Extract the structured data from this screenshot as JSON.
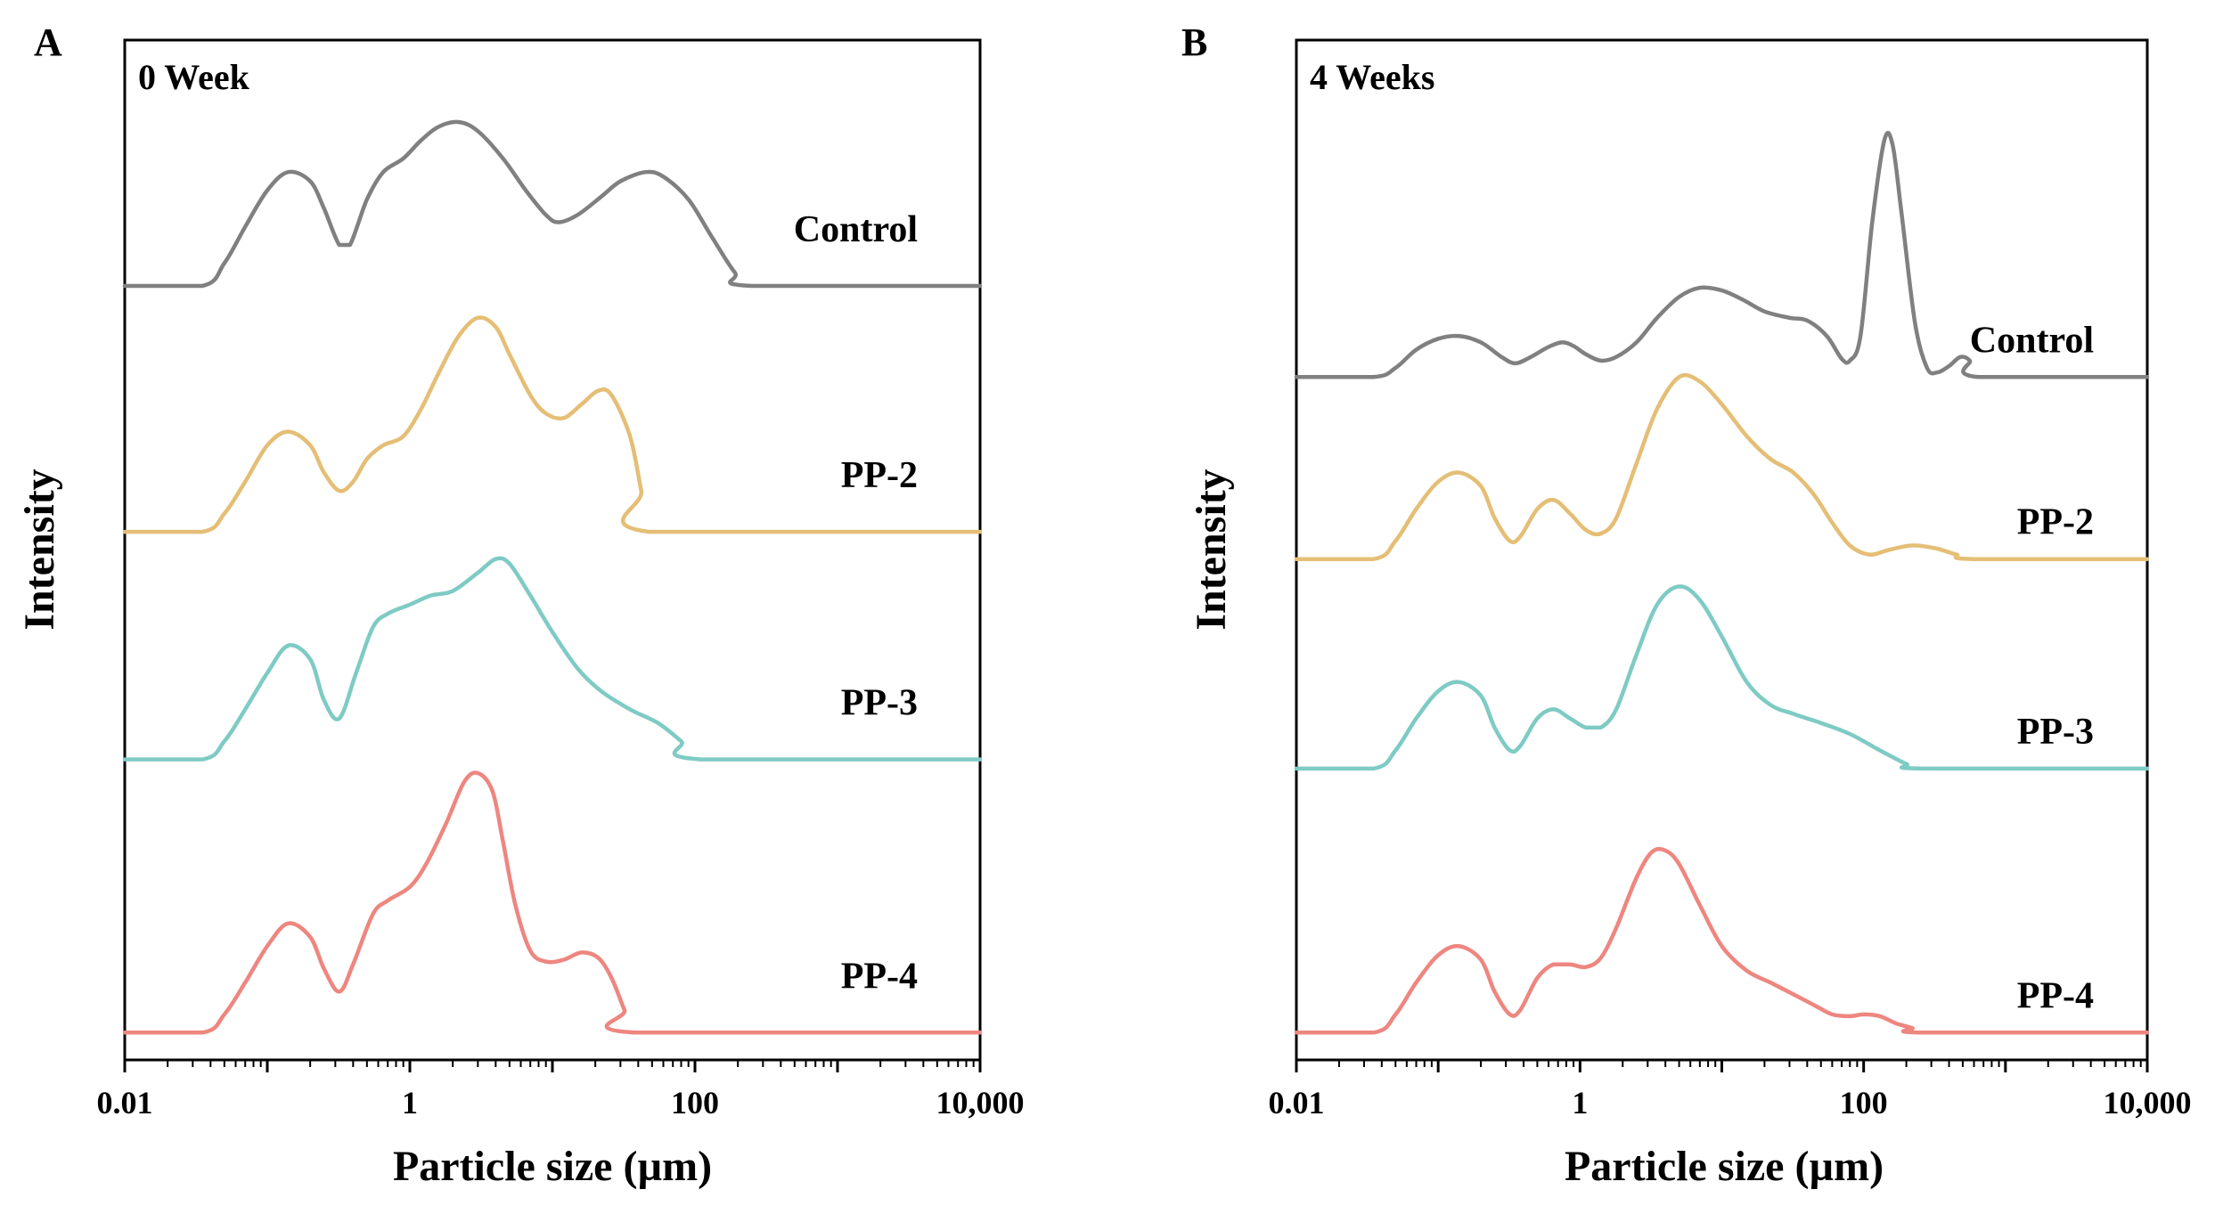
{
  "colors": {
    "control": "#808080",
    "pp2": "#E5BE76",
    "pp3": "#7ECBC4",
    "pp4": "#EE8680"
  },
  "chart_data": [
    {
      "panel": "A",
      "title": "0 Week",
      "type": "line",
      "xlabel": "Particle size (µm)",
      "ylabel": "Intensity",
      "xscale": "log",
      "xlim": [
        0.01,
        10000
      ],
      "xticks": [
        0.01,
        1,
        100,
        10000
      ],
      "xtick_labels": [
        "0.01",
        "1",
        "100",
        "10,000"
      ],
      "ylim": [
        0,
        11.2
      ],
      "series": [
        {
          "name": "Control",
          "color": "#808080",
          "offset": 8.5,
          "points": [
            [
              0.01,
              0
            ],
            [
              0.035,
              0
            ],
            [
              0.05,
              0.25
            ],
            [
              0.07,
              0.65
            ],
            [
              0.1,
              1.05
            ],
            [
              0.14,
              1.25
            ],
            [
              0.2,
              1.15
            ],
            [
              0.25,
              0.85
            ],
            [
              0.32,
              0.45
            ],
            [
              0.38,
              0.45
            ],
            [
              0.5,
              0.95
            ],
            [
              0.65,
              1.25
            ],
            [
              0.9,
              1.4
            ],
            [
              1.2,
              1.6
            ],
            [
              1.6,
              1.75
            ],
            [
              2.2,
              1.8
            ],
            [
              3,
              1.7
            ],
            [
              4.5,
              1.4
            ],
            [
              6.5,
              1.05
            ],
            [
              9,
              0.78
            ],
            [
              11,
              0.7
            ],
            [
              15,
              0.78
            ],
            [
              22,
              0.98
            ],
            [
              30,
              1.15
            ],
            [
              45,
              1.25
            ],
            [
              60,
              1.2
            ],
            [
              90,
              0.95
            ],
            [
              130,
              0.55
            ],
            [
              190,
              0.15
            ],
            [
              250,
              0
            ],
            [
              10000,
              0
            ]
          ]
        },
        {
          "name": "PP-2",
          "color": "#E5BE76",
          "offset": 5.8,
          "points": [
            [
              0.01,
              0
            ],
            [
              0.035,
              0
            ],
            [
              0.05,
              0.2
            ],
            [
              0.07,
              0.55
            ],
            [
              0.1,
              0.95
            ],
            [
              0.14,
              1.1
            ],
            [
              0.2,
              0.95
            ],
            [
              0.25,
              0.65
            ],
            [
              0.32,
              0.45
            ],
            [
              0.4,
              0.55
            ],
            [
              0.5,
              0.8
            ],
            [
              0.65,
              0.95
            ],
            [
              0.9,
              1.05
            ],
            [
              1.2,
              1.35
            ],
            [
              1.6,
              1.75
            ],
            [
              2.2,
              2.15
            ],
            [
              3,
              2.35
            ],
            [
              4,
              2.25
            ],
            [
              5,
              1.95
            ],
            [
              7,
              1.5
            ],
            [
              9,
              1.3
            ],
            [
              12,
              1.25
            ],
            [
              16,
              1.4
            ],
            [
              21,
              1.55
            ],
            [
              26,
              1.5
            ],
            [
              35,
              1.05
            ],
            [
              42,
              0.45
            ],
            [
              48,
              0
            ],
            [
              10000,
              0
            ]
          ]
        },
        {
          "name": "PP-3",
          "color": "#7ECBC4",
          "offset": 3.3,
          "points": [
            [
              0.01,
              0
            ],
            [
              0.035,
              0
            ],
            [
              0.05,
              0.2
            ],
            [
              0.07,
              0.55
            ],
            [
              0.1,
              0.95
            ],
            [
              0.14,
              1.25
            ],
            [
              0.2,
              1.1
            ],
            [
              0.25,
              0.65
            ],
            [
              0.32,
              0.45
            ],
            [
              0.42,
              0.95
            ],
            [
              0.55,
              1.45
            ],
            [
              0.7,
              1.6
            ],
            [
              1,
              1.7
            ],
            [
              1.4,
              1.8
            ],
            [
              2,
              1.85
            ],
            [
              3,
              2.05
            ],
            [
              4,
              2.2
            ],
            [
              5,
              2.15
            ],
            [
              7,
              1.8
            ],
            [
              10,
              1.4
            ],
            [
              15,
              1.0
            ],
            [
              22,
              0.75
            ],
            [
              35,
              0.55
            ],
            [
              55,
              0.4
            ],
            [
              80,
              0.2
            ],
            [
              110,
              0
            ],
            [
              10000,
              0
            ]
          ]
        },
        {
          "name": "PP-4",
          "color": "#EE8680",
          "offset": 0.3,
          "points": [
            [
              0.01,
              0
            ],
            [
              0.035,
              0
            ],
            [
              0.05,
              0.2
            ],
            [
              0.07,
              0.55
            ],
            [
              0.1,
              0.95
            ],
            [
              0.14,
              1.2
            ],
            [
              0.2,
              1.05
            ],
            [
              0.25,
              0.7
            ],
            [
              0.32,
              0.45
            ],
            [
              0.4,
              0.75
            ],
            [
              0.55,
              1.3
            ],
            [
              0.7,
              1.45
            ],
            [
              1,
              1.6
            ],
            [
              1.3,
              1.85
            ],
            [
              1.8,
              2.3
            ],
            [
              2.4,
              2.75
            ],
            [
              3,
              2.85
            ],
            [
              3.8,
              2.65
            ],
            [
              4.5,
              2.1
            ],
            [
              5.5,
              1.4
            ],
            [
              7,
              0.9
            ],
            [
              9,
              0.78
            ],
            [
              12,
              0.8
            ],
            [
              16,
              0.88
            ],
            [
              21,
              0.82
            ],
            [
              26,
              0.6
            ],
            [
              32,
              0.25
            ],
            [
              38,
              0
            ],
            [
              10000,
              0
            ]
          ]
        }
      ]
    },
    {
      "panel": "B",
      "title": "4 Weeks",
      "type": "line",
      "xlabel": "Particle size (µm)",
      "ylabel": "Intensity",
      "xscale": "log",
      "xlim": [
        0.01,
        10000
      ],
      "xticks": [
        0.01,
        1,
        100,
        10000
      ],
      "xtick_labels": [
        "0.01",
        "1",
        "100",
        "10,000"
      ],
      "ylim": [
        0,
        11.2
      ],
      "series": [
        {
          "name": "Control",
          "color": "#808080",
          "offset": 7.5,
          "points": [
            [
              0.01,
              0
            ],
            [
              0.035,
              0
            ],
            [
              0.05,
              0.1
            ],
            [
              0.07,
              0.3
            ],
            [
              0.1,
              0.42
            ],
            [
              0.14,
              0.45
            ],
            [
              0.2,
              0.38
            ],
            [
              0.28,
              0.22
            ],
            [
              0.35,
              0.15
            ],
            [
              0.45,
              0.22
            ],
            [
              0.6,
              0.33
            ],
            [
              0.75,
              0.38
            ],
            [
              0.9,
              0.34
            ],
            [
              1.1,
              0.25
            ],
            [
              1.4,
              0.18
            ],
            [
              1.8,
              0.22
            ],
            [
              2.5,
              0.38
            ],
            [
              3.5,
              0.65
            ],
            [
              5,
              0.88
            ],
            [
              7,
              0.98
            ],
            [
              10,
              0.95
            ],
            [
              14,
              0.85
            ],
            [
              20,
              0.72
            ],
            [
              30,
              0.65
            ],
            [
              40,
              0.62
            ],
            [
              55,
              0.45
            ],
            [
              70,
              0.2
            ],
            [
              80,
              0.18
            ],
            [
              95,
              0.45
            ],
            [
              115,
              1.7
            ],
            [
              140,
              2.6
            ],
            [
              160,
              2.55
            ],
            [
              185,
              1.8
            ],
            [
              230,
              0.6
            ],
            [
              280,
              0.1
            ],
            [
              330,
              0.05
            ],
            [
              400,
              0.12
            ],
            [
              480,
              0.22
            ],
            [
              560,
              0.18
            ],
            [
              640,
              0
            ],
            [
              10000,
              0
            ]
          ]
        },
        {
          "name": "PP-2",
          "color": "#E5BE76",
          "offset": 5.5,
          "points": [
            [
              0.01,
              0
            ],
            [
              0.035,
              0
            ],
            [
              0.05,
              0.2
            ],
            [
              0.07,
              0.55
            ],
            [
              0.1,
              0.85
            ],
            [
              0.14,
              0.95
            ],
            [
              0.2,
              0.8
            ],
            [
              0.25,
              0.45
            ],
            [
              0.32,
              0.2
            ],
            [
              0.38,
              0.25
            ],
            [
              0.5,
              0.55
            ],
            [
              0.65,
              0.65
            ],
            [
              0.85,
              0.5
            ],
            [
              1.1,
              0.32
            ],
            [
              1.4,
              0.28
            ],
            [
              1.8,
              0.45
            ],
            [
              2.5,
              1.05
            ],
            [
              3.5,
              1.65
            ],
            [
              5,
              2.0
            ],
            [
              7,
              1.95
            ],
            [
              10,
              1.7
            ],
            [
              15,
              1.35
            ],
            [
              22,
              1.1
            ],
            [
              32,
              0.95
            ],
            [
              45,
              0.7
            ],
            [
              60,
              0.4
            ],
            [
              80,
              0.15
            ],
            [
              110,
              0.05
            ],
            [
              150,
              0.1
            ],
            [
              220,
              0.15
            ],
            [
              320,
              0.12
            ],
            [
              450,
              0.05
            ],
            [
              600,
              0
            ],
            [
              10000,
              0
            ]
          ]
        },
        {
          "name": "PP-3",
          "color": "#7ECBC4",
          "offset": 3.2,
          "points": [
            [
              0.01,
              0
            ],
            [
              0.035,
              0
            ],
            [
              0.05,
              0.2
            ],
            [
              0.07,
              0.55
            ],
            [
              0.1,
              0.85
            ],
            [
              0.14,
              0.95
            ],
            [
              0.2,
              0.8
            ],
            [
              0.25,
              0.45
            ],
            [
              0.32,
              0.2
            ],
            [
              0.38,
              0.25
            ],
            [
              0.5,
              0.55
            ],
            [
              0.65,
              0.65
            ],
            [
              0.85,
              0.55
            ],
            [
              1.1,
              0.45
            ],
            [
              1.4,
              0.45
            ],
            [
              1.8,
              0.65
            ],
            [
              2.5,
              1.25
            ],
            [
              3.5,
              1.8
            ],
            [
              5,
              2.0
            ],
            [
              7,
              1.85
            ],
            [
              10,
              1.45
            ],
            [
              15,
              0.95
            ],
            [
              22,
              0.7
            ],
            [
              32,
              0.6
            ],
            [
              50,
              0.5
            ],
            [
              80,
              0.38
            ],
            [
              130,
              0.2
            ],
            [
              200,
              0.05
            ],
            [
              260,
              0
            ],
            [
              10000,
              0
            ]
          ]
        },
        {
          "name": "PP-4",
          "color": "#EE8680",
          "offset": 0.3,
          "points": [
            [
              0.01,
              0
            ],
            [
              0.035,
              0
            ],
            [
              0.05,
              0.2
            ],
            [
              0.07,
              0.55
            ],
            [
              0.1,
              0.85
            ],
            [
              0.14,
              0.95
            ],
            [
              0.2,
              0.8
            ],
            [
              0.25,
              0.45
            ],
            [
              0.32,
              0.2
            ],
            [
              0.38,
              0.25
            ],
            [
              0.5,
              0.6
            ],
            [
              0.65,
              0.75
            ],
            [
              0.85,
              0.75
            ],
            [
              1.1,
              0.72
            ],
            [
              1.4,
              0.82
            ],
            [
              1.8,
              1.15
            ],
            [
              2.5,
              1.7
            ],
            [
              3.2,
              1.98
            ],
            [
              4,
              2.0
            ],
            [
              5,
              1.85
            ],
            [
              7,
              1.4
            ],
            [
              10,
              0.95
            ],
            [
              15,
              0.68
            ],
            [
              22,
              0.55
            ],
            [
              32,
              0.42
            ],
            [
              45,
              0.3
            ],
            [
              60,
              0.2
            ],
            [
              80,
              0.18
            ],
            [
              100,
              0.2
            ],
            [
              130,
              0.18
            ],
            [
              170,
              0.1
            ],
            [
              220,
              0.05
            ],
            [
              260,
              0
            ],
            [
              10000,
              0
            ]
          ]
        }
      ]
    }
  ]
}
